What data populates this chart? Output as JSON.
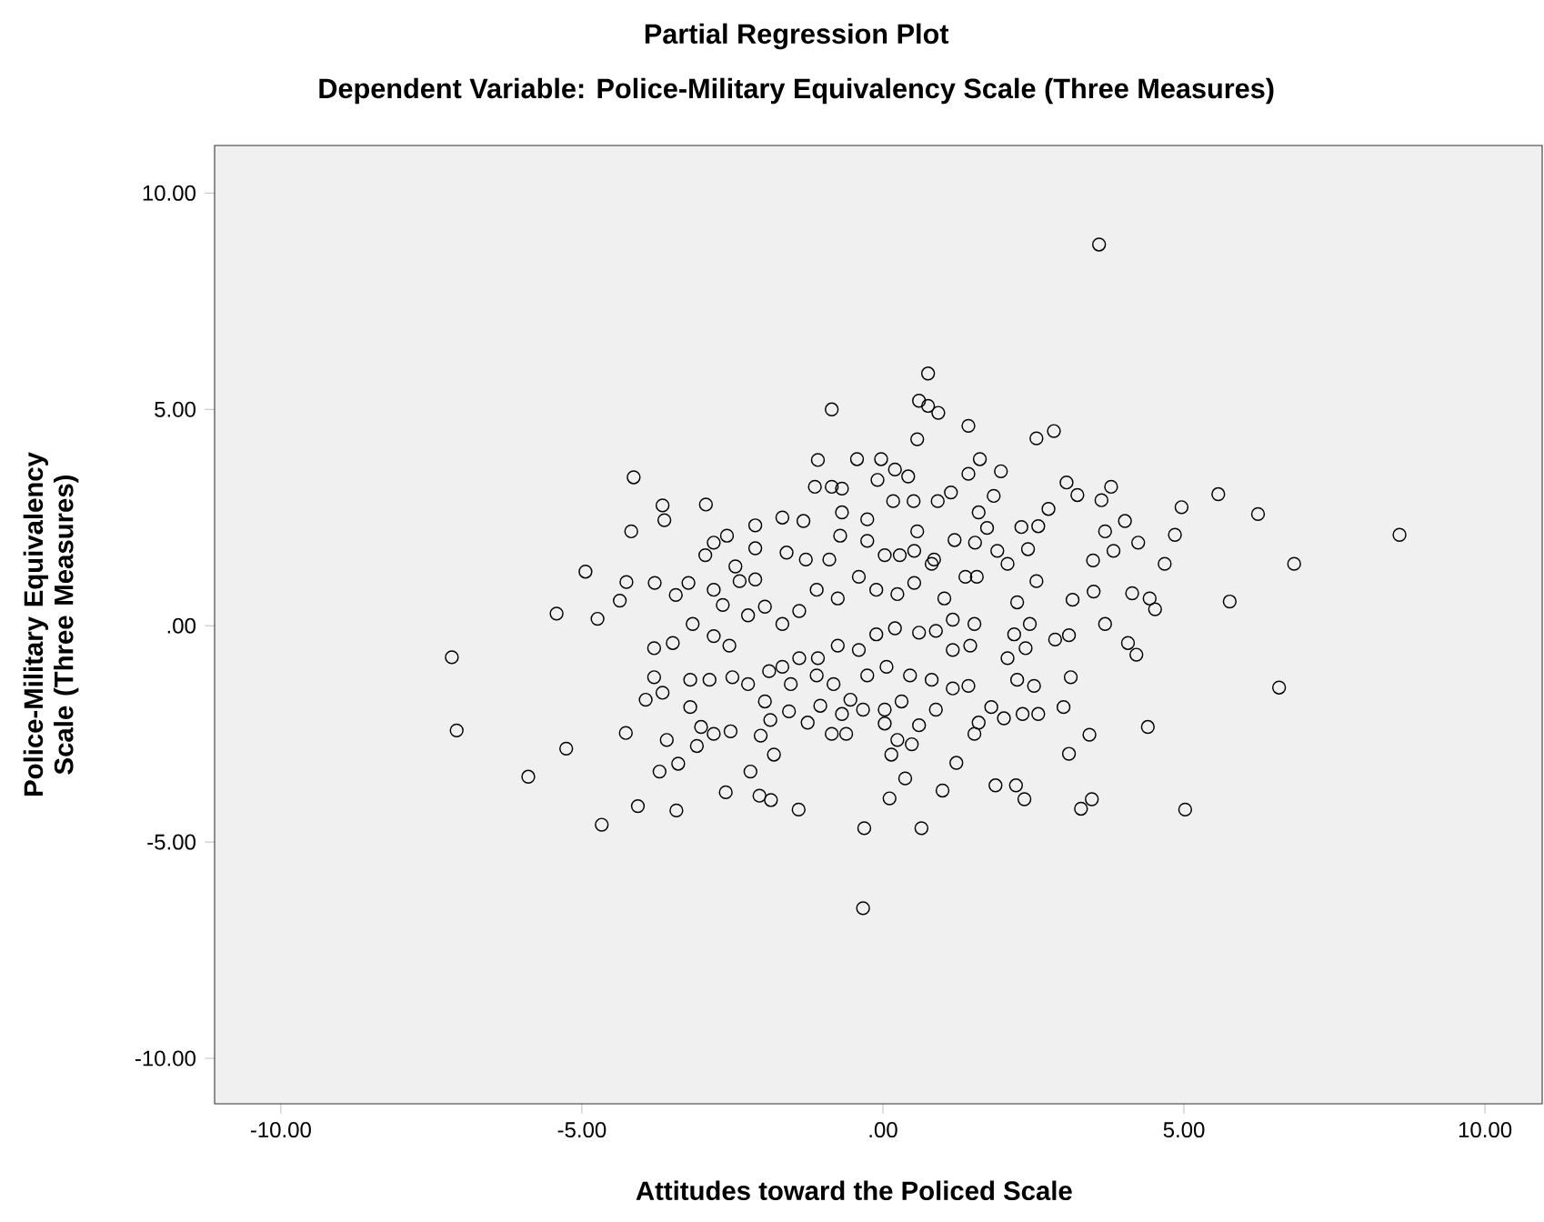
{
  "chart_data": {
    "type": "scatter",
    "title": "Partial Regression Plot",
    "subtitle": "Dependent Variable: Police-Military Equivalency Scale (Three Measures)",
    "xlabel": "Attitudes toward the Policed Scale",
    "ylabel": "Police-Military Equivalency Scale (Three Measures)",
    "xlim": [
      -11.1,
      10.95
    ],
    "ylim": [
      -11.05,
      11.1
    ],
    "xticks": [
      {
        "value": -10,
        "label": "-10.00"
      },
      {
        "value": -5,
        "label": "-5.00"
      },
      {
        "value": 0,
        "label": ".00"
      },
      {
        "value": 5,
        "label": "5.00"
      },
      {
        "value": 10,
        "label": "10.00"
      }
    ],
    "yticks": [
      {
        "value": -10,
        "label": "-10.00"
      },
      {
        "value": -5,
        "label": "-5.00"
      },
      {
        "value": 0,
        "label": ".00"
      },
      {
        "value": 5,
        "label": "5.00"
      },
      {
        "value": 10,
        "label": "10.00"
      }
    ],
    "grid": false,
    "marker": "circle",
    "series": [
      {
        "color": "#000000",
        "x": [
          3.59,
          0.75,
          -0.85,
          0.6,
          0.75,
          0.92,
          1.42,
          2.55,
          2.84,
          0.57,
          -1.08,
          -0.43,
          -0.03,
          -4.14,
          -3.66,
          -2.94,
          -3.63,
          -4.18,
          -4.94,
          -5.42,
          -4.74,
          -4.37,
          -4.26,
          -3.79,
          -7.16,
          -7.08,
          -5.89,
          -5.26,
          -4.67,
          -4.07,
          -3.43,
          -3.71,
          -3.4,
          -4.27,
          -3.59,
          -2.61,
          -2.2,
          -2.05,
          -1.86,
          -1.4,
          -1.81,
          -0.31,
          -0.33,
          0.11,
          0.64,
          0.37,
          0.99,
          1.22,
          1.87,
          2.21,
          2.35,
          3.09,
          3.43,
          3.29,
          3.47,
          4.4,
          5.02,
          6.58,
          6.83,
          8.58,
          6.23,
          5.57,
          4.96,
          4.85,
          4.68,
          5.76,
          4.43,
          4.52,
          4.14,
          4.07,
          4.21,
          3.79,
          3.63,
          3.23,
          3.05,
          4.02,
          4.24,
          3.83,
          3.49,
          3.69,
          3.5,
          3.15,
          3.69,
          3.09,
          2.86,
          3.12,
          3.0,
          2.75,
          2.58,
          2.3,
          2.41,
          2.55,
          1.96,
          1.84,
          1.61,
          1.42,
          1.13,
          1.59,
          1.73,
          1.53,
          1.9,
          1.56,
          2.07,
          2.23,
          2.44,
          2.18,
          2.37,
          2.07,
          2.23,
          2.51,
          2.58,
          2.32,
          2.01,
          1.8,
          1.59,
          1.52,
          0.88,
          0.6,
          0.48,
          0.24,
          0.03,
          0.14,
          -0.61,
          -0.85,
          -1.25,
          -1.56,
          -1.87,
          -2.03,
          -2.53,
          -2.81,
          -3.09,
          -3.02,
          -3.2,
          -3.94,
          -3.66,
          -3.8,
          -3.2,
          -2.88,
          -3.8,
          -3.49,
          -3.16,
          -2.81,
          -2.55,
          -2.5,
          -3.44,
          -3.23,
          -2.81,
          -2.66,
          -2.38,
          -2.12,
          -2.95,
          -2.81,
          -2.59,
          -2.45,
          -2.12,
          -2.12,
          -1.67,
          -1.32,
          -1.6,
          -1.28,
          -0.89,
          -1.13,
          -0.85,
          -0.68,
          -0.68,
          -0.71,
          -0.26,
          -0.26,
          -0.09,
          0.2,
          0.42,
          0.17,
          0.51,
          0.91,
          0.57,
          0.52,
          0.85,
          1.19,
          0.28,
          0.03,
          -1.96,
          -2.24,
          -1.67,
          -1.39,
          -1.1,
          -0.75,
          -0.4,
          -0.11,
          0.24,
          0.52,
          0.81,
          1.02,
          1.16,
          1.37,
          1.52,
          0.88,
          0.6,
          0.2,
          -0.11,
          -0.4,
          -0.75,
          -1.08,
          -1.39,
          -1.67,
          -1.89,
          -2.24,
          -1.96,
          -1.53,
          -1.1,
          -0.82,
          -0.54,
          -0.26,
          0.06,
          0.45,
          0.81,
          1.16,
          1.42,
          1.16,
          1.45,
          0.31,
          0.03,
          -0.33,
          -0.68,
          -1.04
        ],
        "values": [
          8.81,
          5.83,
          5.0,
          5.2,
          5.08,
          4.92,
          4.62,
          4.33,
          4.5,
          4.31,
          3.83,
          3.85,
          3.85,
          3.43,
          2.78,
          2.8,
          2.44,
          2.18,
          1.25,
          0.28,
          0.16,
          0.58,
          1.01,
          0.99,
          -0.73,
          -2.42,
          -3.49,
          -2.84,
          -4.6,
          -4.17,
          -4.27,
          -3.37,
          -3.19,
          -2.48,
          -2.64,
          -3.85,
          -3.37,
          -3.93,
          -4.03,
          -4.25,
          -2.98,
          -4.68,
          -6.53,
          -3.99,
          -4.68,
          -3.53,
          -3.81,
          -3.17,
          -3.69,
          -3.69,
          -4.01,
          -2.96,
          -2.52,
          -4.23,
          -4.01,
          -2.34,
          -4.25,
          -1.43,
          1.43,
          2.1,
          2.58,
          3.04,
          2.74,
          2.1,
          1.43,
          0.56,
          0.63,
          0.38,
          0.75,
          -0.4,
          -0.67,
          3.21,
          2.9,
          3.02,
          3.31,
          2.42,
          1.92,
          1.73,
          1.51,
          2.18,
          0.79,
          0.6,
          0.04,
          -0.22,
          -0.32,
          -1.19,
          -1.88,
          2.7,
          2.3,
          2.28,
          1.77,
          1.03,
          3.57,
          3.0,
          3.85,
          3.51,
          3.08,
          2.62,
          2.26,
          1.92,
          1.73,
          1.13,
          1.43,
          0.54,
          0.04,
          -0.2,
          -0.52,
          -0.75,
          -1.25,
          -1.39,
          -2.04,
          -2.04,
          -2.14,
          -1.88,
          -2.24,
          -2.5,
          -1.94,
          -2.3,
          -2.74,
          -2.64,
          -2.26,
          -2.98,
          -2.5,
          -2.5,
          -2.24,
          -1.98,
          -2.18,
          -2.54,
          -2.44,
          -2.5,
          -2.78,
          -2.34,
          -1.88,
          -1.71,
          -1.55,
          -1.19,
          -1.25,
          -1.25,
          -0.52,
          -0.4,
          0.04,
          -0.24,
          -0.46,
          -1.19,
          0.71,
          0.99,
          0.83,
          0.48,
          1.03,
          1.07,
          1.63,
          1.92,
          2.08,
          1.37,
          2.32,
          1.79,
          2.5,
          2.42,
          1.69,
          1.53,
          1.53,
          3.21,
          3.21,
          3.17,
          2.62,
          2.08,
          2.46,
          1.96,
          3.37,
          3.61,
          3.45,
          2.88,
          2.88,
          2.88,
          2.18,
          1.73,
          1.53,
          1.98,
          1.63,
          1.63,
          0.44,
          0.24,
          0.04,
          0.34,
          0.83,
          0.63,
          1.13,
          0.83,
          0.73,
          0.99,
          1.43,
          0.63,
          0.14,
          1.13,
          0.04,
          -0.12,
          -0.16,
          -0.06,
          -0.2,
          -0.56,
          -0.46,
          -0.75,
          -0.75,
          -0.95,
          -1.05,
          -1.35,
          -1.75,
          -1.35,
          -1.15,
          -1.35,
          -1.71,
          -1.15,
          -0.95,
          -1.15,
          -1.25,
          -1.45,
          -1.39,
          -0.56,
          -0.46,
          -1.75,
          -1.94,
          -1.94,
          -2.04,
          -1.85
        ]
      }
    ]
  }
}
